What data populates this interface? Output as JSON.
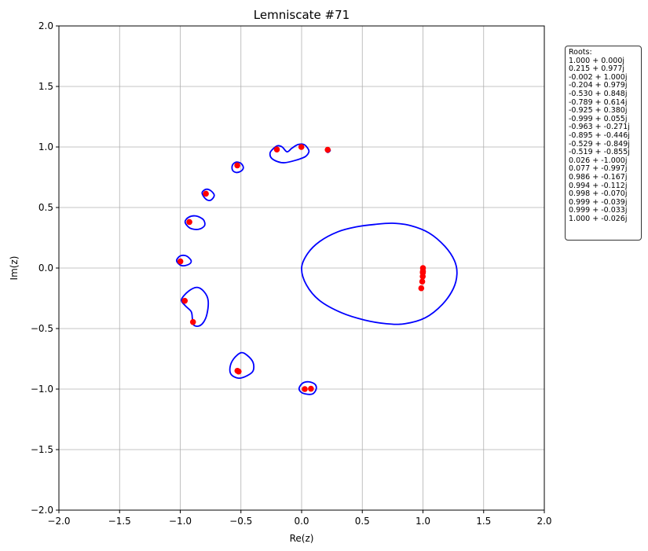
{
  "chart_data": {
    "type": "scatter",
    "title": "Lemniscate #71",
    "xlabel": "Re(z)",
    "ylabel": "Im(z)",
    "xlim": [
      -2.0,
      2.0
    ],
    "ylim": [
      -2.0,
      2.0
    ],
    "grid": true,
    "xticks": [
      "−2.0",
      "−1.5",
      "−1.0",
      "−0.5",
      "0.0",
      "0.5",
      "1.0",
      "1.5",
      "2.0"
    ],
    "yticks": [
      "2.0",
      "1.5",
      "1.0",
      "0.5",
      "0.0",
      "−0.5",
      "−1.0",
      "−1.5",
      "−2.0"
    ],
    "marker_color": "#ff0000",
    "curve_color": "#0000ff",
    "roots_box": {
      "heading": "Roots:",
      "lines": [
        "1.000 + 0.000j",
        "0.215 + 0.977j",
        "-0.002 + 1.000j",
        "-0.204 + 0.979j",
        "-0.530 + 0.848j",
        "-0.789 + 0.614j",
        "-0.925 + 0.380j",
        "-0.999 + 0.055j",
        "-0.963 + -0.271j",
        "-0.895 + -0.446j",
        "-0.529 + -0.849j",
        "-0.519 + -0.855j",
        "0.026 + -1.000j",
        "0.077 + -0.997j",
        "0.986 + -0.167j",
        "0.994 + -0.112j",
        "0.998 + -0.070j",
        "0.999 + -0.039j",
        "0.999 + -0.033j",
        "1.000 + -0.026j"
      ]
    },
    "roots": [
      [
        1.0,
        0.0
      ],
      [
        0.215,
        0.977
      ],
      [
        -0.002,
        1.0
      ],
      [
        -0.204,
        0.979
      ],
      [
        -0.53,
        0.848
      ],
      [
        -0.789,
        0.614
      ],
      [
        -0.925,
        0.38
      ],
      [
        -0.999,
        0.055
      ],
      [
        -0.963,
        -0.271
      ],
      [
        -0.895,
        -0.446
      ],
      [
        -0.529,
        -0.849
      ],
      [
        -0.519,
        -0.855
      ],
      [
        0.026,
        -1.0
      ],
      [
        0.077,
        -0.997
      ],
      [
        0.986,
        -0.167
      ],
      [
        0.994,
        -0.112
      ],
      [
        0.998,
        -0.07
      ],
      [
        0.999,
        -0.039
      ],
      [
        0.999,
        -0.033
      ],
      [
        1.0,
        -0.026
      ]
    ],
    "level_curves": [
      [
        [
          0.0,
          0.0
        ],
        [
          0.05,
          0.12
        ],
        [
          0.15,
          0.22
        ],
        [
          0.3,
          0.3
        ],
        [
          0.45,
          0.34
        ],
        [
          0.6,
          0.36
        ],
        [
          0.75,
          0.37
        ],
        [
          0.9,
          0.35
        ],
        [
          1.05,
          0.29
        ],
        [
          1.18,
          0.18
        ],
        [
          1.26,
          0.06
        ],
        [
          1.28,
          -0.05
        ],
        [
          1.25,
          -0.17
        ],
        [
          1.16,
          -0.3
        ],
        [
          1.02,
          -0.41
        ],
        [
          0.85,
          -0.46
        ],
        [
          0.7,
          -0.46
        ],
        [
          0.52,
          -0.43
        ],
        [
          0.33,
          -0.37
        ],
        [
          0.15,
          -0.27
        ],
        [
          0.04,
          -0.14
        ],
        [
          0.0,
          0.0
        ]
      ],
      [
        [
          0.2,
          0.97
        ],
        [
          0.215,
          0.955
        ],
        [
          0.235,
          0.97
        ],
        [
          0.225,
          0.99
        ],
        [
          0.205,
          0.992
        ],
        [
          0.2,
          0.97
        ]
      ],
      [
        [
          -0.24,
          0.98
        ],
        [
          -0.2,
          1.01
        ],
        [
          -0.16,
          1.0
        ],
        [
          -0.12,
          0.96
        ],
        [
          -0.08,
          0.99
        ],
        [
          -0.03,
          1.02
        ],
        [
          0.02,
          1.02
        ],
        [
          0.05,
          0.99
        ],
        [
          0.06,
          0.96
        ],
        [
          0.03,
          0.92
        ],
        [
          -0.05,
          0.89
        ],
        [
          -0.14,
          0.87
        ],
        [
          -0.2,
          0.88
        ],
        [
          -0.25,
          0.91
        ],
        [
          -0.26,
          0.95
        ],
        [
          -0.24,
          0.98
        ]
      ],
      [
        [
          -0.57,
          0.85
        ],
        [
          -0.54,
          0.875
        ],
        [
          -0.5,
          0.865
        ],
        [
          -0.48,
          0.83
        ],
        [
          -0.5,
          0.8
        ],
        [
          -0.54,
          0.79
        ],
        [
          -0.57,
          0.81
        ],
        [
          -0.57,
          0.85
        ]
      ],
      [
        [
          -0.82,
          0.62
        ],
        [
          -0.79,
          0.65
        ],
        [
          -0.75,
          0.64
        ],
        [
          -0.72,
          0.6
        ],
        [
          -0.75,
          0.56
        ],
        [
          -0.79,
          0.57
        ],
        [
          -0.82,
          0.62
        ]
      ],
      [
        [
          -0.96,
          0.38
        ],
        [
          -0.93,
          0.42
        ],
        [
          -0.87,
          0.43
        ],
        [
          -0.81,
          0.4
        ],
        [
          -0.8,
          0.35
        ],
        [
          -0.85,
          0.32
        ],
        [
          -0.92,
          0.33
        ],
        [
          -0.96,
          0.38
        ]
      ],
      [
        [
          -1.03,
          0.06
        ],
        [
          -1.0,
          0.1
        ],
        [
          -0.95,
          0.1
        ],
        [
          -0.91,
          0.06
        ],
        [
          -0.93,
          0.03
        ],
        [
          -0.99,
          0.02
        ],
        [
          -1.03,
          0.06
        ]
      ],
      [
        [
          -0.99,
          -0.26
        ],
        [
          -0.93,
          -0.19
        ],
        [
          -0.86,
          -0.16
        ],
        [
          -0.8,
          -0.2
        ],
        [
          -0.77,
          -0.27
        ],
        [
          -0.78,
          -0.38
        ],
        [
          -0.81,
          -0.45
        ],
        [
          -0.85,
          -0.48
        ],
        [
          -0.89,
          -0.47
        ],
        [
          -0.9,
          -0.42
        ],
        [
          -0.91,
          -0.36
        ],
        [
          -0.96,
          -0.31
        ],
        [
          -0.99,
          -0.26
        ]
      ],
      [
        [
          -0.59,
          -0.82
        ],
        [
          -0.56,
          -0.75
        ],
        [
          -0.5,
          -0.7
        ],
        [
          -0.45,
          -0.72
        ],
        [
          -0.4,
          -0.78
        ],
        [
          -0.4,
          -0.85
        ],
        [
          -0.45,
          -0.89
        ],
        [
          -0.52,
          -0.91
        ],
        [
          -0.58,
          -0.88
        ],
        [
          -0.59,
          -0.82
        ]
      ],
      [
        [
          -0.02,
          -0.99
        ],
        [
          0.01,
          -0.95
        ],
        [
          0.06,
          -0.94
        ],
        [
          0.11,
          -0.96
        ],
        [
          0.12,
          -1.0
        ],
        [
          0.09,
          -1.04
        ],
        [
          0.03,
          -1.04
        ],
        [
          -0.01,
          -1.02
        ],
        [
          -0.02,
          -0.99
        ]
      ]
    ]
  }
}
